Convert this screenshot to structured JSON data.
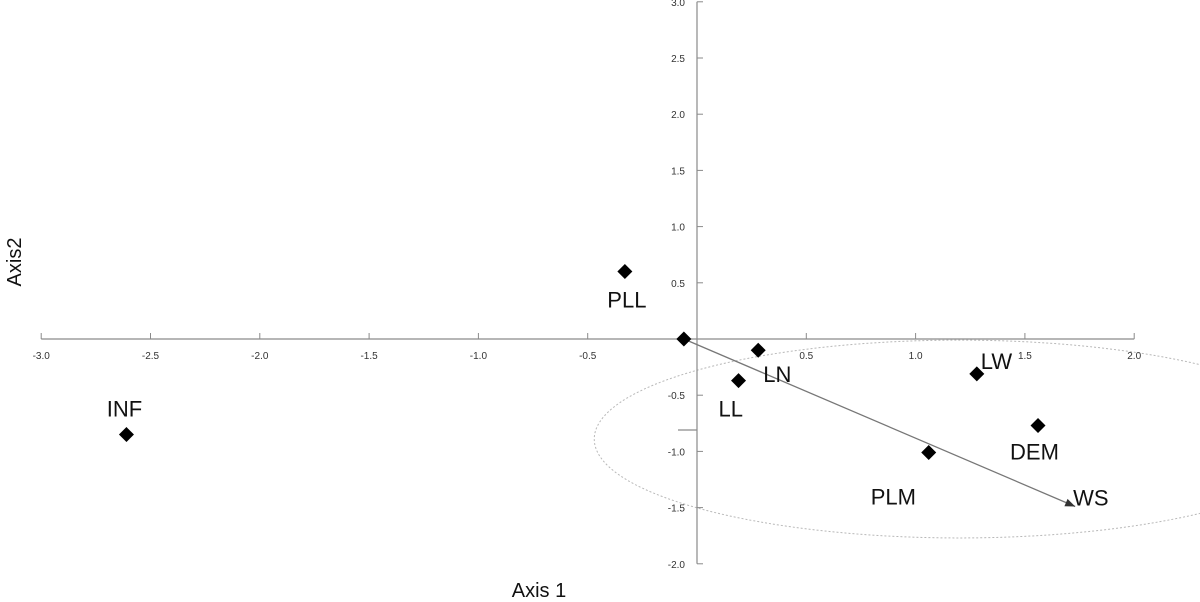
{
  "chart_data": {
    "type": "scatter",
    "xlabel": "Axis 1",
    "ylabel": "Axis2",
    "xlim": [
      -3.0,
      2.0
    ],
    "ylim": [
      -2.0,
      3.0
    ],
    "x_ticks": [
      "-3.0",
      "-2.5",
      "-2.0",
      "-1.5",
      "-1.0",
      "-0.5",
      "0.5",
      "1.0",
      "1.5",
      "2.0"
    ],
    "x_tick_values": [
      -3.0,
      -2.5,
      -2.0,
      -1.5,
      -1.0,
      -0.5,
      0.5,
      1.0,
      1.5,
      2.0
    ],
    "y_ticks": [
      "3.0",
      "2.5",
      "2.0",
      "1.5",
      "1.0",
      "0.5",
      "-0.5",
      "-1.0",
      "-1.5",
      "-2.0"
    ],
    "y_tick_values": [
      3.0,
      2.5,
      2.0,
      1.5,
      1.0,
      0.5,
      -0.5,
      -1.0,
      -1.5,
      -2.0
    ],
    "points": [
      {
        "label": "INF",
        "x": -2.61,
        "y": -0.85
      },
      {
        "label": "PLL",
        "x": -0.33,
        "y": 0.6
      },
      {
        "label": "",
        "x": -0.06,
        "y": 0.0
      },
      {
        "label": "LN",
        "x": 0.28,
        "y": -0.1
      },
      {
        "label": "LL",
        "x": 0.19,
        "y": -0.37
      },
      {
        "label": "LW",
        "x": 1.28,
        "y": -0.31
      },
      {
        "label": "DEM",
        "x": 1.56,
        "y": -0.77
      },
      {
        "label": "PLM",
        "x": 1.06,
        "y": -1.01
      }
    ],
    "vector": {
      "label": "WS",
      "from": [
        -0.06,
        0.0
      ],
      "to": [
        1.73,
        -1.49
      ]
    },
    "ellipse": {
      "cx": 1.2,
      "cy": -0.89,
      "rx": 1.67,
      "ry": 0.88
    }
  }
}
